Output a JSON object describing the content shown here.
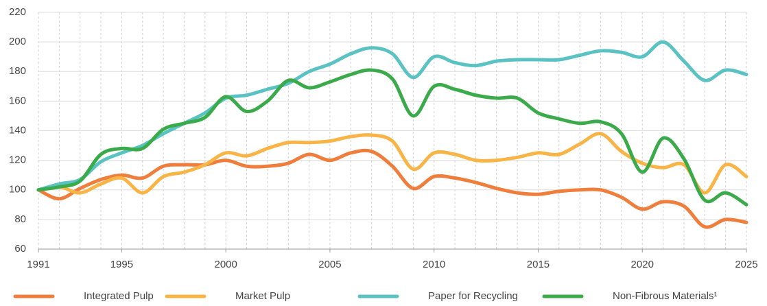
{
  "chart_data": {
    "type": "line",
    "x": [
      1991,
      1992,
      1993,
      1994,
      1995,
      1996,
      1997,
      1998,
      1999,
      2000,
      2001,
      2002,
      2003,
      2004,
      2005,
      2006,
      2007,
      2008,
      2009,
      2010,
      2011,
      2012,
      2013,
      2014,
      2015,
      2016,
      2017,
      2018,
      2019,
      2020,
      2021,
      2022,
      2023,
      2024,
      2025
    ],
    "xlim": [
      1991,
      2025
    ],
    "xticks": [
      1991,
      1995,
      2000,
      2005,
      2010,
      2015,
      2020,
      2025
    ],
    "ylim": [
      60,
      220
    ],
    "yticks": [
      60,
      80,
      100,
      120,
      140,
      160,
      180,
      200,
      220
    ],
    "grid": true,
    "legend": "bottom",
    "series": [
      {
        "name": "Integrated Pulp",
        "color": "#ef7d3c",
        "values": [
          100,
          94,
          101,
          107,
          110,
          108,
          116,
          117,
          117,
          120,
          116,
          116,
          118,
          124,
          120,
          125,
          126,
          116,
          101,
          109,
          108,
          105,
          101,
          98,
          97,
          99,
          100,
          100,
          95,
          87,
          92,
          89,
          75,
          80,
          78
        ]
      },
      {
        "name": "Market Pulp",
        "color": "#f8b446",
        "values": [
          100,
          102,
          98,
          104,
          108,
          98,
          109,
          112,
          117,
          125,
          123,
          128,
          132,
          132,
          133,
          136,
          137,
          133,
          114,
          125,
          124,
          120,
          120,
          122,
          125,
          124,
          131,
          138,
          126,
          118,
          115,
          117,
          98,
          117,
          109
        ]
      },
      {
        "name": "Paper for Recycling",
        "color": "#5ac2c3",
        "values": [
          100,
          104,
          107,
          119,
          125,
          130,
          138,
          145,
          152,
          162,
          164,
          168,
          172,
          180,
          185,
          192,
          196,
          192,
          176,
          190,
          186,
          184,
          187,
          188,
          188,
          188,
          191,
          194,
          193,
          190,
          200,
          187,
          174,
          181,
          178
        ]
      },
      {
        "name": "Non-Fibrous Materials¹",
        "color": "#3aaa4a",
        "values": [
          100,
          102,
          106,
          124,
          128,
          128,
          141,
          145,
          149,
          163,
          153,
          160,
          174,
          169,
          173,
          178,
          181,
          175,
          150,
          170,
          168,
          164,
          162,
          162,
          152,
          148,
          145,
          146,
          138,
          112,
          135,
          121,
          93,
          98,
          90
        ]
      }
    ]
  }
}
